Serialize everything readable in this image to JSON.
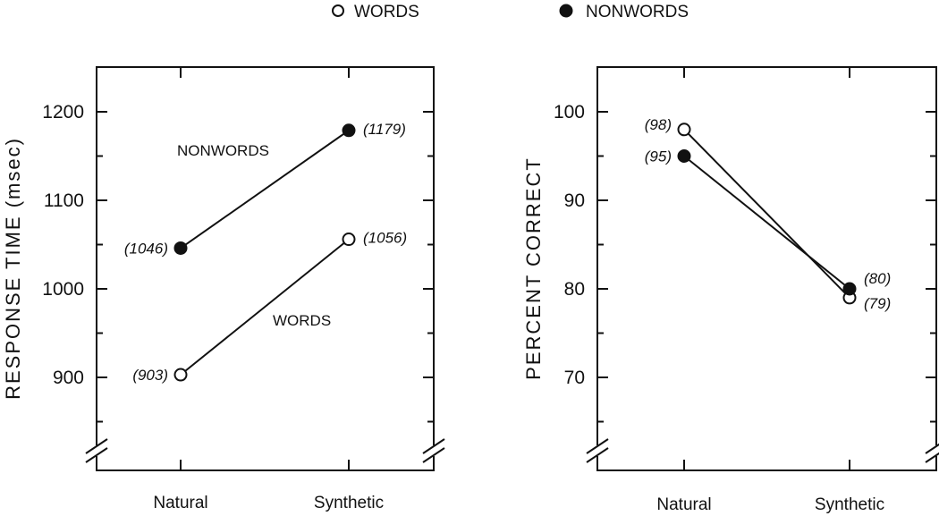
{
  "legend": [
    {
      "label": "WORDS",
      "marker": "open-circle"
    },
    {
      "label": "NONWORDS",
      "marker": "filled-circle"
    }
  ],
  "chart_data": [
    {
      "type": "line",
      "ylabel": "RESPONSE  TIME  (msec)",
      "categories": [
        "Natural",
        "Synthetic"
      ],
      "ylim": [
        830,
        1250
      ],
      "yticks": [
        900,
        1000,
        1100,
        1200
      ],
      "axis_break": true,
      "series": [
        {
          "name": "NONWORDS",
          "marker": "filled-circle",
          "values": [
            1046,
            1179
          ],
          "data_labels": [
            "(1046)",
            "(1179)"
          ]
        },
        {
          "name": "WORDS",
          "marker": "open-circle",
          "values": [
            903,
            1056
          ],
          "data_labels": [
            "(903)",
            "(1056)"
          ]
        }
      ]
    },
    {
      "type": "line",
      "ylabel": "PERCENT  CORRECT",
      "categories": [
        "Natural",
        "Synthetic"
      ],
      "ylim": [
        63,
        105
      ],
      "yticks": [
        70,
        80,
        90,
        100
      ],
      "axis_break": true,
      "series": [
        {
          "name": "WORDS",
          "marker": "open-circle",
          "values": [
            98,
            79
          ],
          "data_labels": [
            "(98)",
            "(79)"
          ]
        },
        {
          "name": "NONWORDS",
          "marker": "filled-circle",
          "values": [
            95,
            80
          ],
          "data_labels": [
            "(95)",
            "(80)"
          ]
        }
      ]
    }
  ]
}
